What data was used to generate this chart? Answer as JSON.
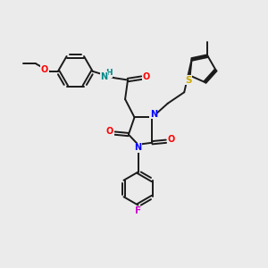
{
  "bg_color": "#ebebeb",
  "bond_color": "#1a1a1a",
  "colors": {
    "N": "#0000ff",
    "O": "#ff0000",
    "F": "#cc00cc",
    "S": "#ccaa00",
    "NH": "#008888",
    "C": "#1a1a1a"
  },
  "lw": 1.4,
  "fs": 7.0
}
